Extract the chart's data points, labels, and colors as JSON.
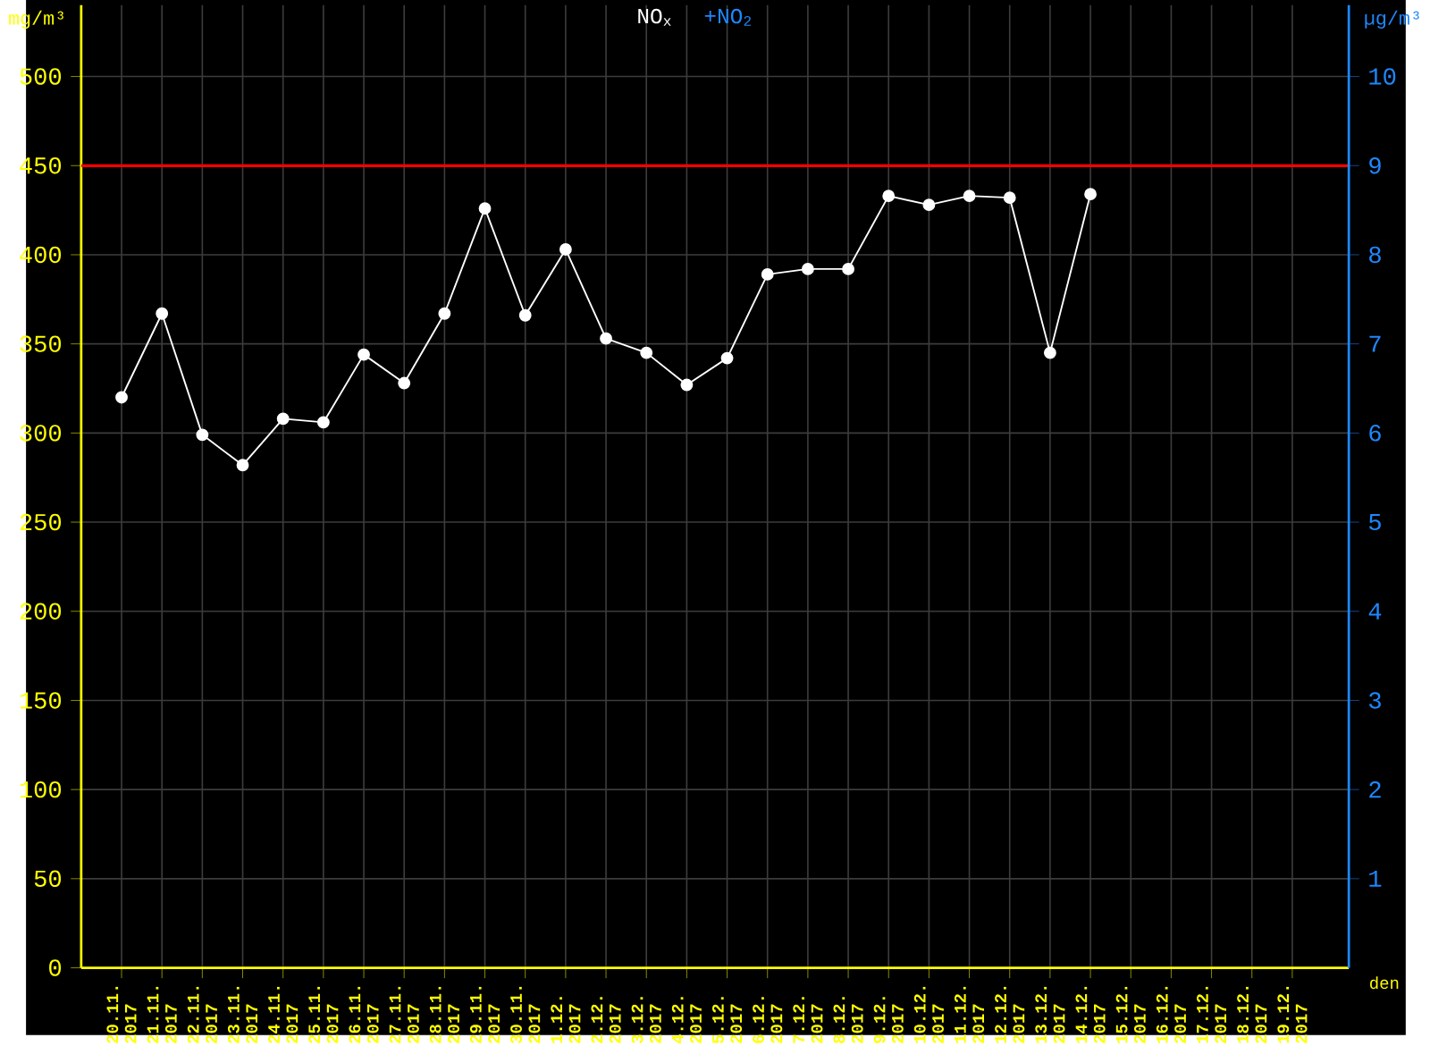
{
  "chart_data": {
    "type": "line",
    "categories": [
      "20.11. 2017",
      "21.11. 2017",
      "22.11. 2017",
      "23.11. 2017",
      "24.11. 2017",
      "25.11. 2017",
      "26.11. 2017",
      "27.11. 2017",
      "28.11. 2017",
      "29.11. 2017",
      "30.11. 2017",
      "1.12. 2017",
      "2.12. 2017",
      "3.12. 2017",
      "4.12. 2017",
      "5.12. 2017",
      "6.12. 2017",
      "7.12. 2017",
      "8.12. 2017",
      "9.12. 2017",
      "10.12. 2017",
      "11.12. 2017",
      "12.12. 2017",
      "13.12. 2017",
      "14.12. 2017",
      "15.12. 2017",
      "16.12. 2017",
      "17.12. 2017",
      "18.12. 2017",
      "19.12. 2017"
    ],
    "series": [
      {
        "name": "NO$_{x}$",
        "color": "#ffffff",
        "values": [
          320,
          367,
          299,
          282,
          308,
          306,
          344,
          328,
          367,
          426,
          366,
          403,
          353,
          345,
          327,
          342,
          389,
          392,
          392,
          433,
          428,
          433,
          432,
          345,
          434,
          null,
          null,
          null,
          null,
          null
        ]
      }
    ],
    "annotations": [
      "+NO$_{2}$"
    ],
    "xlabel": "den",
    "ylabel": "mg/m³",
    "y2label": "µg/m³",
    "ylim": [
      0,
      540
    ],
    "yticks": [
      0,
      50,
      100,
      150,
      200,
      250,
      300,
      350,
      400,
      450,
      500
    ],
    "y2lim": [
      0,
      10.8
    ],
    "y2ticks": [
      1,
      2,
      3,
      4,
      5,
      6,
      7,
      8,
      9,
      10
    ],
    "ref_lines": [
      {
        "axis": "y",
        "value": 450,
        "color": "#ff0000"
      }
    ],
    "grid": true,
    "legend": "top",
    "marker": "circle",
    "line_style": "solid"
  }
}
